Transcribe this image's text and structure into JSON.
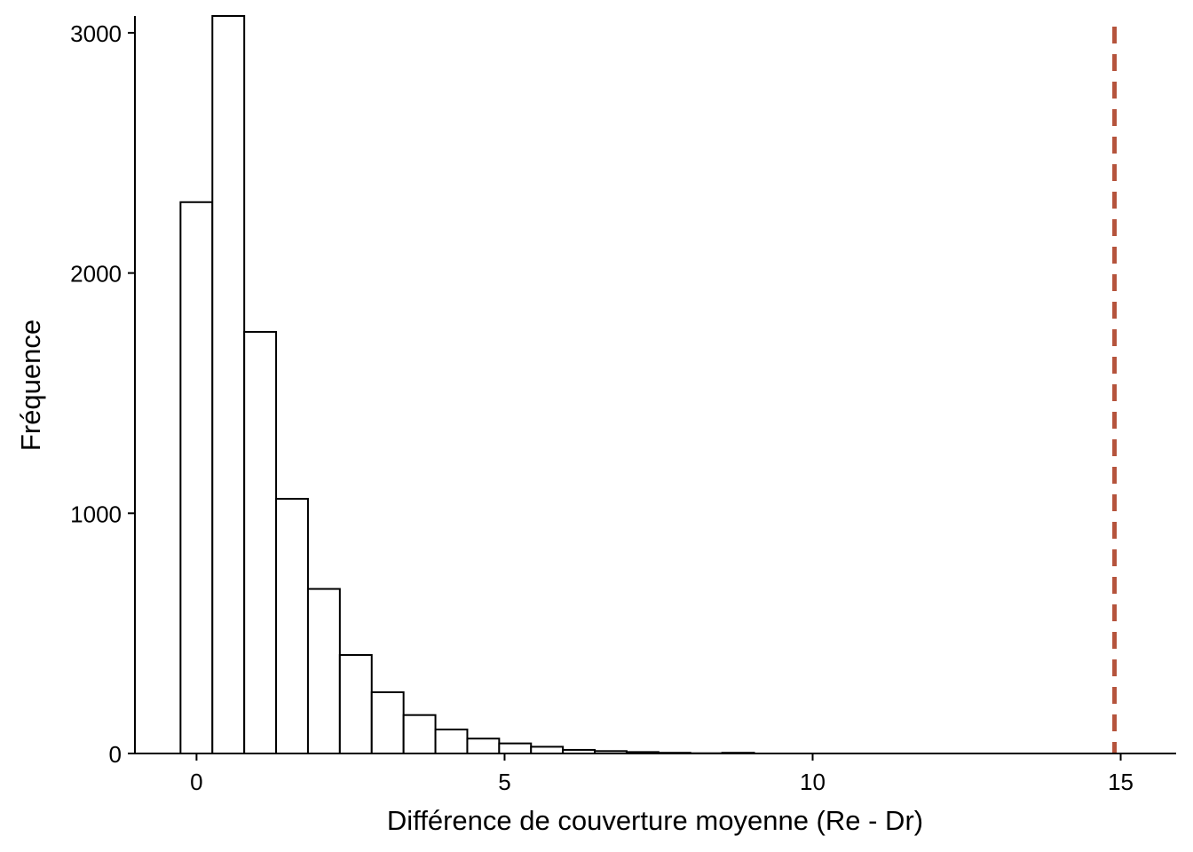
{
  "chart_data": {
    "type": "histogram",
    "xlabel": "Différence de couverture moyenne (Re - Dr)",
    "ylabel": "Fréquence",
    "xlim": [
      -1,
      15.9
    ],
    "ylim": [
      0,
      3070
    ],
    "x_ticks": [
      0,
      5,
      10,
      15
    ],
    "y_ticks": [
      0,
      1000,
      2000,
      3000
    ],
    "bin_width": 0.5172,
    "bin_starts": [
      -0.26,
      0.2572,
      0.7744,
      1.2916,
      1.8088,
      2.326,
      2.8432,
      3.3604,
      3.8776,
      4.3948,
      4.912,
      5.4292,
      5.9464,
      6.4636,
      6.9808,
      7.498,
      8.0152,
      8.5324
    ],
    "counts": [
      2295,
      3070,
      1755,
      1060,
      685,
      410,
      255,
      160,
      100,
      62,
      42,
      28,
      15,
      10,
      6,
      3,
      1,
      3
    ],
    "reference_line": {
      "x": 14.9,
      "style": "dashed",
      "color": "#b5533c"
    },
    "grid": false,
    "bar_fill": "#ffffff",
    "bar_edge": "#000000"
  }
}
